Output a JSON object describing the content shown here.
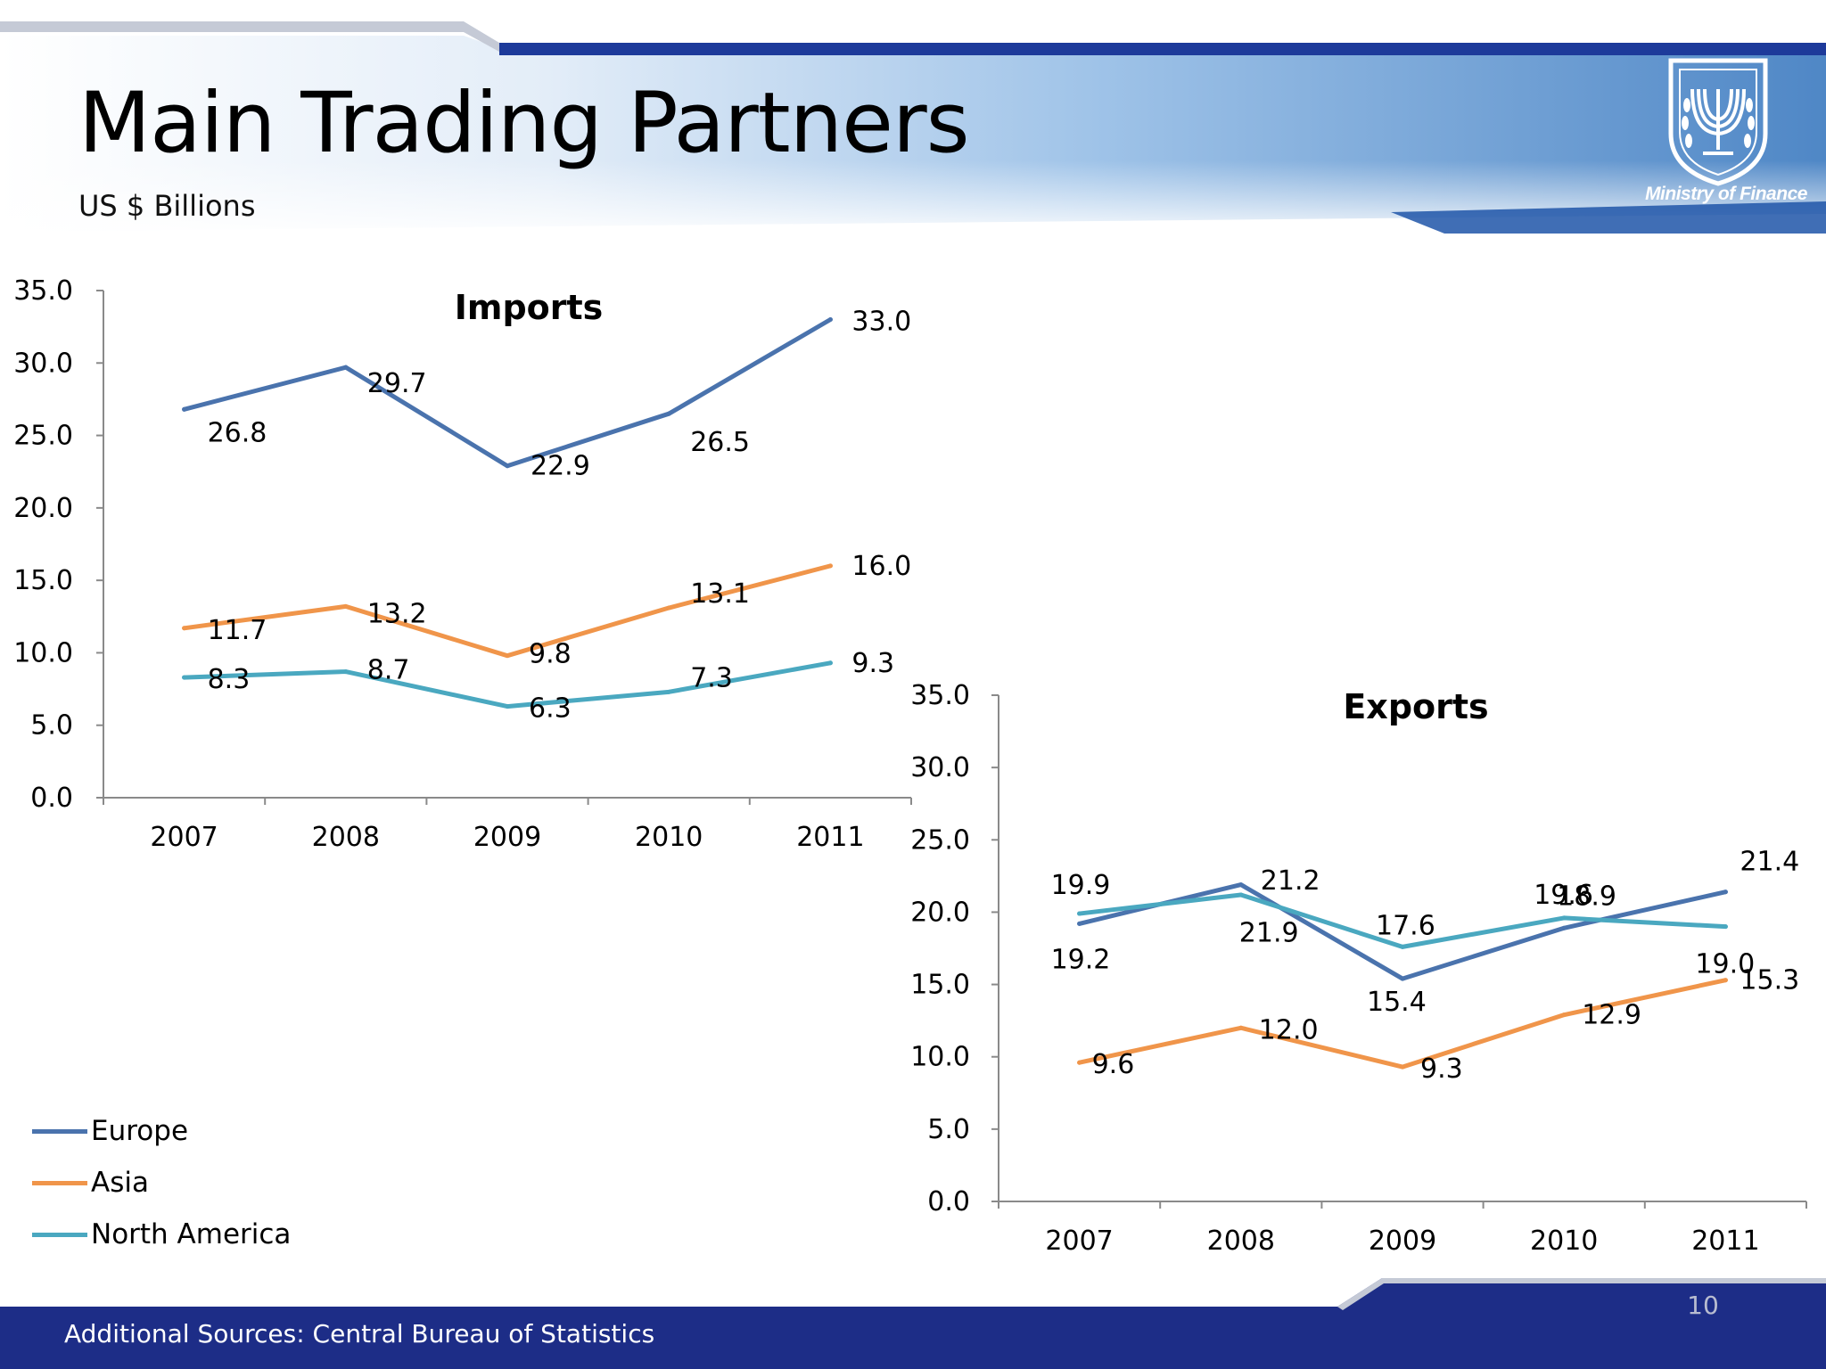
{
  "slide": {
    "title": "Main Trading Partners",
    "subtitle": "US $ Billions",
    "logo_caption": "Ministry of Finance",
    "logo_icon": "menorah-emblem-icon",
    "footer": "Additional Sources: Central Bureau of Statistics",
    "page_number": "10"
  },
  "colors": {
    "europe": "#4a73ad",
    "asia": "#f0954a",
    "north_america": "#4aa8c0",
    "banner_dark": "#1d2d87",
    "banner_light": "#cfe0f4"
  },
  "legend": [
    {
      "label": "Europe",
      "color": "#4a73ad"
    },
    {
      "label": "Asia",
      "color": "#f0954a"
    },
    {
      "label": "North America",
      "color": "#4aa8c0"
    }
  ],
  "chart_data": [
    {
      "type": "line",
      "title": "Imports",
      "categories": [
        "2007",
        "2008",
        "2009",
        "2010",
        "2011"
      ],
      "ylim": [
        0,
        35
      ],
      "yticks": [
        "0.0",
        "5.0",
        "10.0",
        "15.0",
        "20.0",
        "25.0",
        "30.0",
        "35.0"
      ],
      "grid": false,
      "series": [
        {
          "name": "Europe",
          "color": "#4a73ad",
          "values": [
            26.8,
            29.7,
            22.9,
            26.5,
            33.0
          ],
          "labels": [
            "26.8",
            "29.7",
            "22.9",
            "26.5",
            "33.0"
          ]
        },
        {
          "name": "Asia",
          "color": "#f0954a",
          "values": [
            11.7,
            13.2,
            9.8,
            13.1,
            16.0
          ],
          "labels": [
            "11.7",
            "13.2",
            "9.8",
            "13.1",
            "16.0"
          ]
        },
        {
          "name": "North America",
          "color": "#4aa8c0",
          "values": [
            8.3,
            8.7,
            6.3,
            7.3,
            9.3
          ],
          "labels": [
            "8.3",
            "8.7",
            "6.3",
            "7.3",
            "9.3"
          ]
        }
      ]
    },
    {
      "type": "line",
      "title": "Exports",
      "categories": [
        "2007",
        "2008",
        "2009",
        "2010",
        "2011"
      ],
      "ylim": [
        0,
        35
      ],
      "yticks": [
        "0.0",
        "5.0",
        "10.0",
        "15.0",
        "20.0",
        "25.0",
        "30.0",
        "35.0"
      ],
      "grid": false,
      "series": [
        {
          "name": "Europe",
          "color": "#4a73ad",
          "values": [
            19.2,
            21.9,
            15.4,
            18.9,
            21.4
          ],
          "labels": [
            "19.2",
            "21.9",
            "15.4",
            "18.9",
            "21.4"
          ]
        },
        {
          "name": "Asia",
          "color": "#f0954a",
          "values": [
            9.6,
            12.0,
            9.3,
            12.9,
            15.3
          ],
          "labels": [
            "9.6",
            "12.0",
            "9.3",
            "12.9",
            "15.3"
          ]
        },
        {
          "name": "North America",
          "color": "#4aa8c0",
          "values": [
            19.9,
            21.2,
            17.6,
            19.6,
            19.0
          ],
          "labels": [
            "19.9",
            "21.2",
            "17.6",
            "19.6",
            "19.0"
          ]
        }
      ]
    }
  ]
}
